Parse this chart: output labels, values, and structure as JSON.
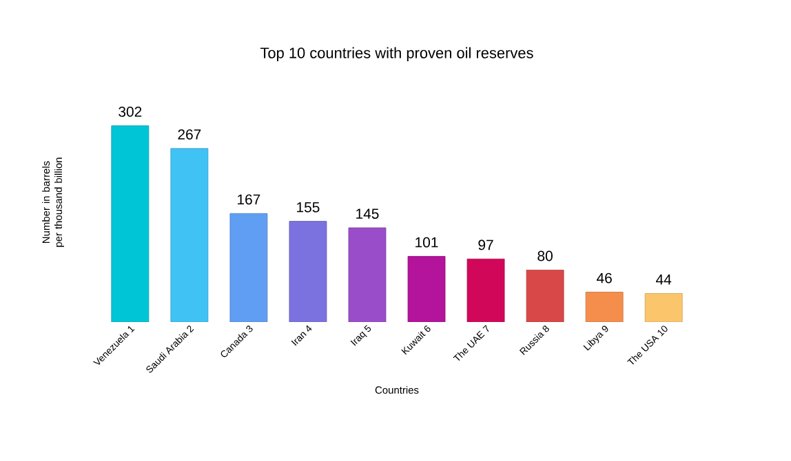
{
  "chart_data": {
    "type": "bar",
    "title": "Top 10 countries with proven oil reserves",
    "xlabel": "Countries",
    "ylabel": "Number in barrels per thousand billion",
    "categories": [
      "Venezuela 1",
      "Saudi Arabia 2",
      "Canada 3",
      "Iran 4",
      "Iraq 5",
      "Kuwait 6",
      "The UAE 7",
      "Russia 8",
      "Libya 9",
      "The USA 10"
    ],
    "values": [
      302,
      267,
      167,
      155,
      145,
      101,
      97,
      80,
      46,
      44
    ],
    "colors": [
      "#00c5d6",
      "#40c2f5",
      "#5f9ef2",
      "#7b72df",
      "#9a4dc9",
      "#b4139b",
      "#d1085a",
      "#d94848",
      "#f58e4c",
      "#fbc56c"
    ],
    "data_labels": true
  }
}
